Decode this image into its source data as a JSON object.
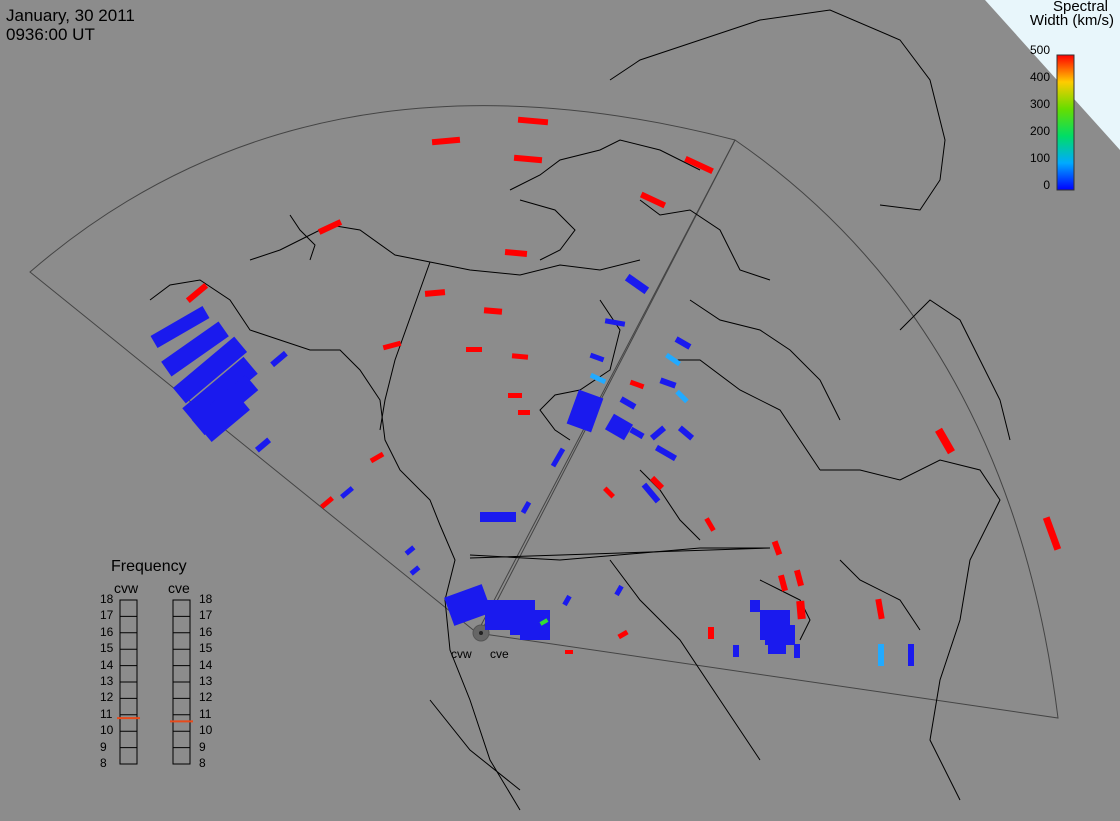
{
  "header": {
    "date": "January, 30 2011",
    "time": "0936:00 UT"
  },
  "colorbar": {
    "title_line1": "Spectral",
    "title_line2": "Width (km/s)",
    "ticks": [
      "500",
      "400",
      "300",
      "200",
      "100",
      "0"
    ]
  },
  "frequency_panel": {
    "title": "Frequency",
    "left_label": "cvw",
    "right_label": "cve",
    "ticks": [
      "18",
      "17",
      "16",
      "15",
      "14",
      "13",
      "12",
      "11",
      "10",
      "9",
      "8"
    ],
    "left_value_mhz": 10.8,
    "right_value_mhz": 10.6,
    "indicator_color": "#e84a1a"
  },
  "radars": {
    "left": "cvw",
    "right": "cve"
  },
  "colors": {
    "background": "#8c8c8c",
    "ocean_corner": "#e8f6fb",
    "red": "#ff0000",
    "blue": "#1a1aee",
    "cyan": "#22aaff",
    "green": "#33dd33"
  }
}
